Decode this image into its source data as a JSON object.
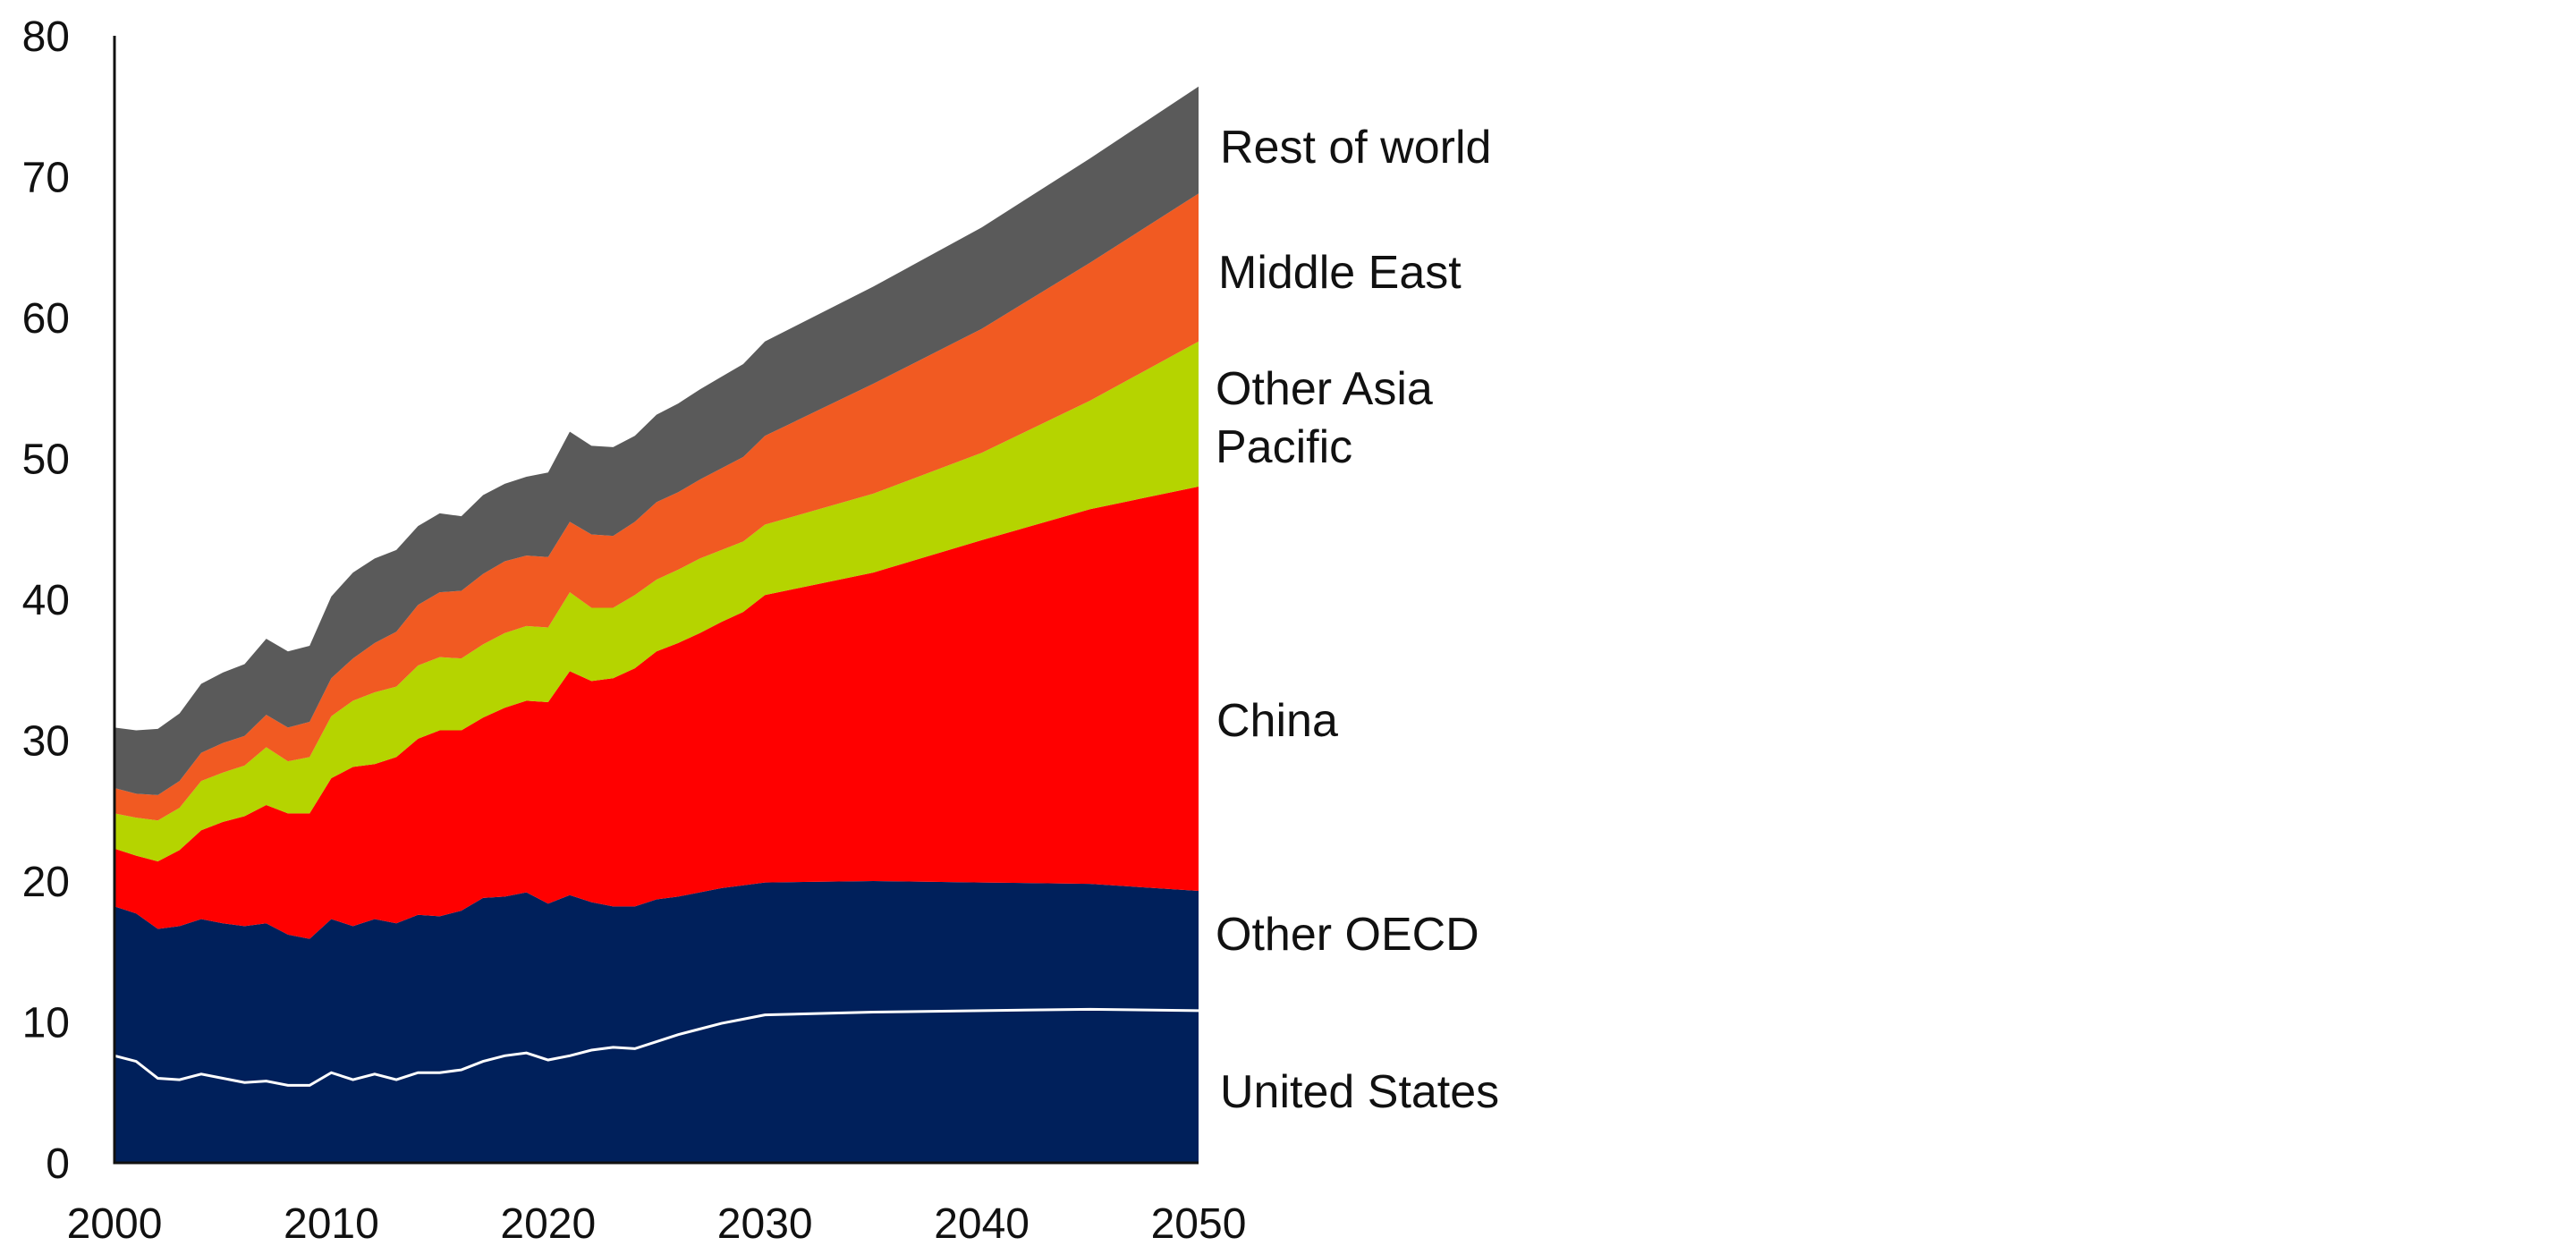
{
  "chart_data": {
    "type": "area",
    "stacked": true,
    "title": "",
    "xlabel": "",
    "ylabel": "",
    "xlim": [
      2000,
      2050
    ],
    "ylim": [
      0,
      80
    ],
    "x_ticks": [
      "2000",
      "2010",
      "2020",
      "2030",
      "2040",
      "2050"
    ],
    "y_ticks": [
      "0",
      "10",
      "20",
      "30",
      "40",
      "50",
      "60",
      "70",
      "80"
    ],
    "grid": false,
    "x": [
      2000,
      2001,
      2002,
      2003,
      2004,
      2005,
      2006,
      2007,
      2008,
      2009,
      2010,
      2011,
      2012,
      2013,
      2014,
      2015,
      2016,
      2017,
      2018,
      2019,
      2020,
      2021,
      2022,
      2023,
      2024,
      2025,
      2026,
      2027,
      2028,
      2029,
      2030,
      2035,
      2040,
      2045,
      2050
    ],
    "series": [
      {
        "name": "United States",
        "color": "#00205b",
        "values": [
          7.6,
          7.2,
          6.0,
          5.9,
          6.3,
          6.0,
          5.7,
          5.8,
          5.5,
          5.5,
          6.4,
          5.9,
          6.3,
          5.9,
          6.4,
          6.4,
          6.6,
          7.2,
          7.6,
          7.8,
          7.3,
          7.6,
          8.0,
          8.2,
          8.1,
          8.6,
          9.1,
          9.5,
          9.9,
          10.2,
          10.5,
          10.7,
          10.8,
          10.9,
          10.8
        ]
      },
      {
        "name": "Other OECD",
        "color": "#00205b",
        "values": [
          10.6,
          10.5,
          10.6,
          10.9,
          11.0,
          11.0,
          11.1,
          11.2,
          10.7,
          10.4,
          10.9,
          10.9,
          11.0,
          11.1,
          11.2,
          11.1,
          11.3,
          11.6,
          11.3,
          11.4,
          11.1,
          11.4,
          10.5,
          10.0,
          10.1,
          10.1,
          9.8,
          9.7,
          9.6,
          9.5,
          9.4,
          9.3,
          9.1,
          8.9,
          8.5
        ]
      },
      {
        "name": "China",
        "color": "#ff0000",
        "values": [
          4.1,
          4.1,
          4.8,
          5.4,
          6.3,
          7.2,
          7.8,
          8.4,
          8.6,
          8.9,
          10.0,
          11.3,
          11.0,
          11.8,
          12.5,
          13.2,
          12.8,
          12.8,
          13.4,
          13.6,
          14.3,
          15.9,
          15.7,
          16.2,
          16.9,
          17.6,
          18.0,
          18.4,
          18.9,
          19.4,
          20.4,
          21.9,
          24.3,
          26.6,
          28.7
        ]
      },
      {
        "name": "Other Asia Pacific",
        "color": "#b5d400",
        "values": [
          2.5,
          2.7,
          2.9,
          3.0,
          3.5,
          3.5,
          3.6,
          4.1,
          3.7,
          4.0,
          4.4,
          4.7,
          5.1,
          5.0,
          5.2,
          5.2,
          5.1,
          5.2,
          5.3,
          5.3,
          5.3,
          5.6,
          5.2,
          5.0,
          5.2,
          5.1,
          5.2,
          5.3,
          5.1,
          5.0,
          5.0,
          5.6,
          6.2,
          7.7,
          10.3
        ]
      },
      {
        "name": "Middle East",
        "color": "#f15a22",
        "values": [
          1.8,
          1.7,
          1.8,
          1.9,
          2.0,
          2.1,
          2.1,
          2.3,
          2.4,
          2.5,
          2.7,
          3.0,
          3.5,
          3.9,
          4.3,
          4.6,
          4.8,
          5.0,
          5.1,
          5.0,
          5.0,
          5.0,
          5.2,
          5.1,
          5.2,
          5.5,
          5.5,
          5.6,
          5.8,
          6.0,
          6.3,
          7.8,
          8.8,
          9.8,
          10.5
        ]
      },
      {
        "name": "Rest of world",
        "color": "#5a5a5a",
        "values": [
          4.3,
          4.5,
          4.7,
          4.8,
          4.9,
          5.0,
          5.1,
          5.4,
          5.4,
          5.4,
          5.8,
          6.1,
          6.0,
          5.8,
          5.6,
          5.6,
          5.3,
          5.6,
          5.5,
          5.6,
          6.0,
          6.4,
          6.3,
          6.3,
          6.1,
          6.2,
          6.3,
          6.4,
          6.5,
          6.6,
          6.7,
          6.9,
          7.2,
          7.4,
          7.6
        ]
      }
    ],
    "labels": {
      "rest_of_world": "Rest of world",
      "middle_east": "Middle East",
      "other_asia_line1": "Other Asia",
      "other_asia_line2": "Pacific",
      "china": "China",
      "other_oecd": "Other OECD",
      "united_states": "United States"
    },
    "us_divider_color": "#ffffff"
  }
}
